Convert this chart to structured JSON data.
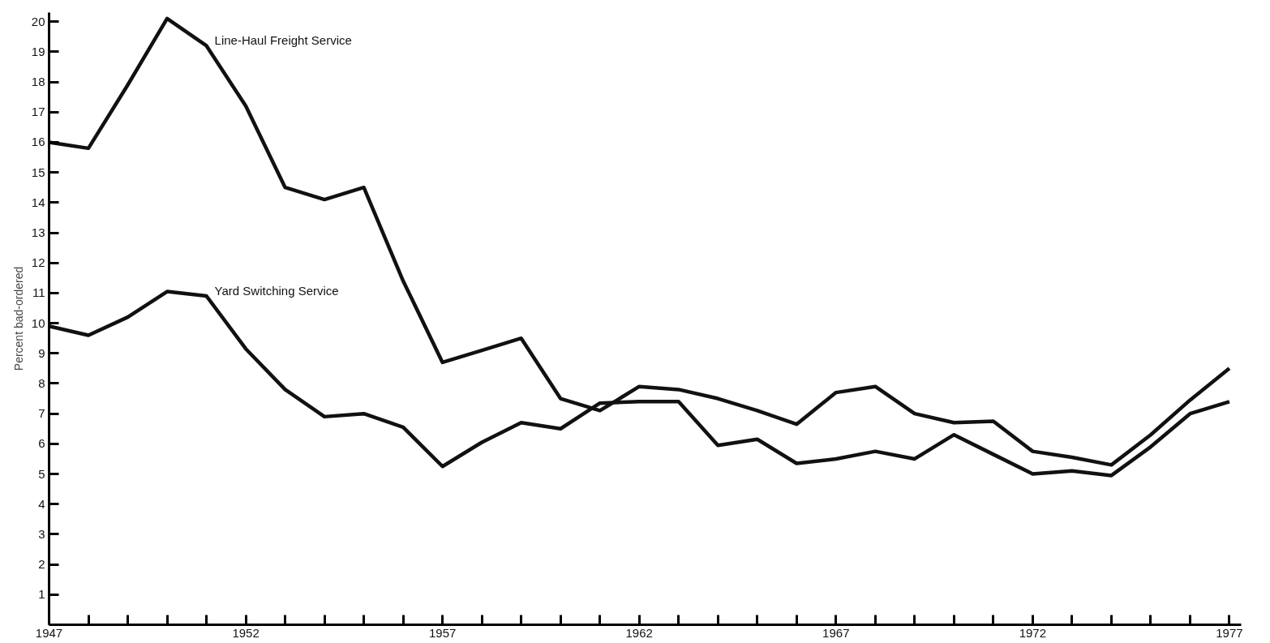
{
  "chart_data": {
    "type": "line",
    "ylabel": "Percent bad-ordered",
    "x": [
      1947,
      1948,
      1949,
      1950,
      1951,
      1952,
      1953,
      1954,
      1955,
      1956,
      1957,
      1958,
      1959,
      1960,
      1961,
      1962,
      1963,
      1964,
      1965,
      1966,
      1967,
      1968,
      1969,
      1970,
      1971,
      1972,
      1973,
      1974,
      1975,
      1976,
      1977
    ],
    "series": [
      {
        "name": "Line-Haul Freight Service",
        "color": "#111111",
        "values": [
          16.0,
          15.8,
          17.9,
          20.1,
          19.2,
          17.2,
          14.5,
          14.1,
          14.5,
          11.4,
          8.7,
          9.1,
          9.5,
          7.5,
          7.1,
          7.9,
          7.8,
          7.5,
          7.1,
          6.65,
          7.7,
          7.9,
          7.0,
          6.7,
          6.75,
          5.75,
          5.55,
          5.3,
          6.3,
          7.45,
          8.5
        ]
      },
      {
        "name": "Yard Switching Service",
        "color": "#111111",
        "values": [
          9.9,
          9.6,
          10.2,
          11.05,
          10.9,
          9.15,
          7.8,
          6.9,
          7.0,
          6.55,
          5.25,
          6.05,
          6.7,
          6.5,
          7.35,
          7.4,
          7.4,
          5.95,
          6.15,
          5.35,
          5.5,
          5.75,
          5.5,
          6.3,
          5.65,
          5.0,
          5.1,
          4.95,
          5.9,
          7.0,
          7.4
        ]
      }
    ],
    "xlim": [
      1947,
      1977.3
    ],
    "ylim": [
      0,
      20.3
    ],
    "xticks": [
      1947,
      {
        "value": 1948,
        "label": null
      },
      {
        "value": 1949,
        "label": null
      },
      {
        "value": 1950,
        "label": null
      },
      {
        "value": 1951,
        "label": null
      },
      1952,
      {
        "value": 1953,
        "label": null
      },
      {
        "value": 1954,
        "label": null
      },
      {
        "value": 1955,
        "label": null
      },
      {
        "value": 1956,
        "label": null
      },
      1957,
      {
        "value": 1958,
        "label": null
      },
      {
        "value": 1959,
        "label": null
      },
      {
        "value": 1960,
        "label": null
      },
      {
        "value": 1961,
        "label": null
      },
      1962,
      {
        "value": 1963,
        "label": null
      },
      {
        "value": 1964,
        "label": null
      },
      {
        "value": 1965,
        "label": null
      },
      {
        "value": 1966,
        "label": null
      },
      1967,
      {
        "value": 1968,
        "label": null
      },
      {
        "value": 1969,
        "label": null
      },
      {
        "value": 1970,
        "label": null
      },
      {
        "value": 1971,
        "label": null
      },
      1972,
      {
        "value": 1973,
        "label": null
      },
      {
        "value": 1974,
        "label": null
      },
      {
        "value": 1975,
        "label": null
      },
      {
        "value": 1976,
        "label": null
      },
      1977
    ],
    "yticks": [
      1,
      2,
      3,
      4,
      5,
      6,
      7,
      8,
      9,
      10,
      11,
      12,
      13,
      14,
      15,
      16,
      17,
      18,
      19,
      20
    ],
    "grid": false,
    "marker": "none",
    "line_style": "solid"
  }
}
